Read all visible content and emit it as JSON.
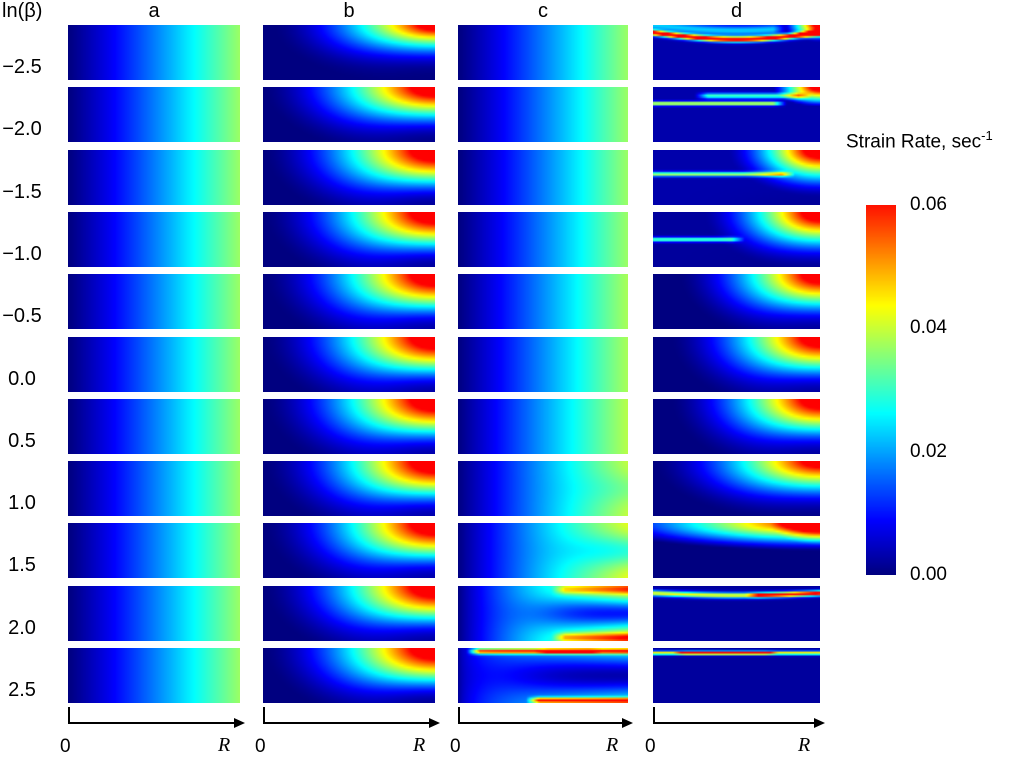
{
  "figure": {
    "y_axis_label": "ln(β)",
    "columns": [
      "a",
      "b",
      "c",
      "d"
    ],
    "rows": [
      "−2.5",
      "−2.0",
      "−1.5",
      "−1.0",
      "−0.5",
      "0.0",
      "0.5",
      "1.0",
      "1.5",
      "2.0",
      "2.5"
    ],
    "x_axis": {
      "origin": "0",
      "end": "R"
    },
    "colorbar": {
      "title": "Strain Rate, sec",
      "title_sup": "-1",
      "ticks": [
        "0.06",
        "0.04",
        "0.02",
        "0.00"
      ],
      "vmin": 0,
      "vmax": 0.06
    }
  },
  "chart_data": {
    "type": "heatmap",
    "colormap": "jet",
    "value_range": [
      0,
      0.06
    ],
    "x_range_labels": [
      "0",
      "R"
    ],
    "grid": {
      "columns": [
        "a",
        "b",
        "c",
        "d"
      ],
      "rows": [
        "−2.5",
        "−2.0",
        "−1.5",
        "−1.0",
        "−0.5",
        "0.0",
        "0.5",
        "1.0",
        "1.5",
        "2.0",
        "2.5"
      ]
    },
    "panels": [
      {
        "col": "a",
        "row": "−2.5",
        "components": [
          {
            "t": "grad",
            "v": 0.037,
            "p": 1.1
          }
        ]
      },
      {
        "col": "a",
        "row": "−2.0",
        "components": [
          {
            "t": "grad",
            "v": 0.037,
            "p": 1.1
          }
        ]
      },
      {
        "col": "a",
        "row": "−1.5",
        "components": [
          {
            "t": "grad",
            "v": 0.037,
            "p": 1.1
          }
        ]
      },
      {
        "col": "a",
        "row": "−1.0",
        "components": [
          {
            "t": "grad",
            "v": 0.037,
            "p": 1.1
          }
        ]
      },
      {
        "col": "a",
        "row": "−0.5",
        "components": [
          {
            "t": "grad",
            "v": 0.037,
            "p": 1.1
          }
        ]
      },
      {
        "col": "a",
        "row": "0.0",
        "components": [
          {
            "t": "grad",
            "v": 0.037,
            "p": 1.1
          }
        ]
      },
      {
        "col": "a",
        "row": "0.5",
        "components": [
          {
            "t": "grad",
            "v": 0.037,
            "p": 1.1
          }
        ]
      },
      {
        "col": "a",
        "row": "1.0",
        "components": [
          {
            "t": "grad",
            "v": 0.037,
            "p": 1.1
          }
        ]
      },
      {
        "col": "a",
        "row": "1.5",
        "components": [
          {
            "t": "grad",
            "v": 0.037,
            "p": 1.1
          }
        ]
      },
      {
        "col": "a",
        "row": "2.0",
        "components": [
          {
            "t": "grad",
            "v": 0.037,
            "p": 1.1
          }
        ]
      },
      {
        "col": "a",
        "row": "2.5",
        "components": [
          {
            "t": "grad",
            "v": 0.037,
            "p": 1.1
          }
        ]
      },
      {
        "col": "b",
        "row": "−2.5",
        "components": [
          {
            "t": "corner",
            "v": 0.08,
            "ax": 0.95,
            "ay": 1.15,
            "q": 1.8
          }
        ],
        "masks": [
          {
            "t": "deadBR",
            "s": 0.97,
            "wx": 0.75,
            "wy": 0.6
          }
        ]
      },
      {
        "col": "b",
        "row": "−2.0",
        "components": [
          {
            "t": "corner",
            "v": 0.08,
            "ax": 1.0,
            "ay": 1.35,
            "q": 1.7
          }
        ],
        "masks": [
          {
            "t": "deadBR",
            "s": 0.9,
            "wx": 0.55,
            "wy": 0.45
          }
        ]
      },
      {
        "col": "b",
        "row": "−1.5",
        "components": [
          {
            "t": "corner",
            "v": 0.08,
            "ax": 1.0,
            "ay": 1.5,
            "q": 1.7
          }
        ],
        "masks": [
          {
            "t": "deadBR",
            "s": 0.85,
            "wx": 0.5,
            "wy": 0.4
          }
        ]
      },
      {
        "col": "b",
        "row": "−1.0",
        "components": [
          {
            "t": "corner",
            "v": 0.08,
            "ax": 1.0,
            "ay": 1.55,
            "q": 1.7
          }
        ],
        "masks": [
          {
            "t": "deadBR",
            "s": 0.85,
            "wx": 0.5,
            "wy": 0.4
          }
        ]
      },
      {
        "col": "b",
        "row": "−0.5",
        "components": [
          {
            "t": "corner",
            "v": 0.08,
            "ax": 1.0,
            "ay": 1.6,
            "q": 1.7
          }
        ],
        "masks": [
          {
            "t": "deadBR",
            "s": 0.82,
            "wx": 0.5,
            "wy": 0.4
          }
        ]
      },
      {
        "col": "b",
        "row": "0.0",
        "components": [
          {
            "t": "corner",
            "v": 0.08,
            "ax": 1.0,
            "ay": 1.6,
            "q": 1.7
          }
        ],
        "masks": [
          {
            "t": "deadBR",
            "s": 0.82,
            "wx": 0.5,
            "wy": 0.4
          }
        ]
      },
      {
        "col": "b",
        "row": "0.5",
        "components": [
          {
            "t": "corner",
            "v": 0.08,
            "ax": 1.0,
            "ay": 1.6,
            "q": 1.7
          }
        ],
        "masks": [
          {
            "t": "deadBR",
            "s": 0.8,
            "wx": 0.5,
            "wy": 0.4
          }
        ]
      },
      {
        "col": "b",
        "row": "1.0",
        "components": [
          {
            "t": "corner",
            "v": 0.08,
            "ax": 1.0,
            "ay": 1.6,
            "q": 1.7
          }
        ],
        "masks": [
          {
            "t": "deadBR",
            "s": 0.8,
            "wx": 0.5,
            "wy": 0.4
          }
        ]
      },
      {
        "col": "b",
        "row": "1.5",
        "components": [
          {
            "t": "corner",
            "v": 0.08,
            "ax": 1.0,
            "ay": 1.6,
            "q": 1.7
          }
        ],
        "masks": [
          {
            "t": "deadBR",
            "s": 0.8,
            "wx": 0.5,
            "wy": 0.4
          }
        ]
      },
      {
        "col": "b",
        "row": "2.0",
        "components": [
          {
            "t": "corner",
            "v": 0.08,
            "ax": 1.0,
            "ay": 1.55,
            "q": 1.7
          }
        ],
        "masks": [
          {
            "t": "deadBR",
            "s": 0.82,
            "wx": 0.5,
            "wy": 0.4
          }
        ]
      },
      {
        "col": "b",
        "row": "2.5",
        "components": [
          {
            "t": "corner",
            "v": 0.08,
            "ax": 1.0,
            "ay": 1.5,
            "q": 1.7
          }
        ],
        "masks": [
          {
            "t": "deadBR",
            "s": 0.85,
            "wx": 0.5,
            "wy": 0.38
          }
        ]
      },
      {
        "col": "c",
        "row": "−2.5",
        "components": [
          {
            "t": "grad",
            "v": 0.037,
            "p": 1.1
          }
        ]
      },
      {
        "col": "c",
        "row": "−2.0",
        "components": [
          {
            "t": "grad",
            "v": 0.037,
            "p": 1.1
          }
        ]
      },
      {
        "col": "c",
        "row": "−1.5",
        "components": [
          {
            "t": "grad",
            "v": 0.037,
            "p": 1.1
          }
        ]
      },
      {
        "col": "c",
        "row": "−1.0",
        "components": [
          {
            "t": "grad",
            "v": 0.037,
            "p": 1.08
          }
        ]
      },
      {
        "col": "c",
        "row": "−0.5",
        "components": [
          {
            "t": "grad",
            "v": 0.038,
            "p": 1.05
          }
        ]
      },
      {
        "col": "c",
        "row": "0.0",
        "components": [
          {
            "t": "grad",
            "v": 0.038,
            "p": 1.05
          }
        ]
      },
      {
        "col": "c",
        "row": "0.5",
        "components": [
          {
            "t": "grad",
            "v": 0.039,
            "p": 1.0
          }
        ]
      },
      {
        "col": "c",
        "row": "1.0",
        "components": [
          {
            "t": "grad",
            "v": 0.04,
            "p": 1.0
          }
        ],
        "masks": [
          {
            "t": "centerDead",
            "s": 0.15,
            "hy": 0.3,
            "x0": 0.8,
            "w": 0.12
          }
        ]
      },
      {
        "col": "c",
        "row": "1.5",
        "components": [
          {
            "t": "grad",
            "v": 0.043,
            "p": 0.95
          }
        ],
        "masks": [
          {
            "t": "centerDead",
            "s": 0.35,
            "hy": 0.3,
            "x0": 0.7,
            "w": 0.12
          }
        ]
      },
      {
        "col": "c",
        "row": "2.0",
        "components": [
          {
            "t": "grad",
            "v": 0.048,
            "p": 0.85
          },
          {
            "t": "band",
            "v": 0.018,
            "y0": 0.07,
            "h": 0.08,
            "x0": 0.55,
            "x1": 1.2
          },
          {
            "t": "band",
            "v": 0.022,
            "y0": 0.93,
            "h": 0.08,
            "x0": 0.55,
            "x1": 1.2
          }
        ],
        "masks": [
          {
            "t": "centerDead",
            "s": 0.8,
            "hy": 0.3,
            "x0": 0.5,
            "w": 0.12
          }
        ]
      },
      {
        "col": "c",
        "row": "2.5",
        "components": [
          {
            "t": "grad",
            "v": 0.03,
            "p": 0.5
          },
          {
            "t": "band",
            "v": 0.05,
            "y0": 0.06,
            "h": 0.05,
            "x0": 0.05,
            "x1": 1.2
          },
          {
            "t": "band",
            "v": 0.055,
            "y0": 0.95,
            "h": 0.05,
            "x0": 0.4,
            "x1": 1.2
          },
          {
            "t": "band",
            "v": 0.02,
            "y0": 0.06,
            "h": 0.04,
            "x0": 0.45,
            "x1": 0.85
          }
        ],
        "masks": [
          {
            "t": "centerDead",
            "s": 0.9,
            "hy": 0.35,
            "x0": 0.3,
            "w": 0.15
          }
        ]
      },
      {
        "col": "d",
        "row": "−2.5",
        "components": [
          {
            "t": "fill",
            "v": 0.003
          },
          {
            "t": "band",
            "v": 0.07,
            "y0": 0.14,
            "amp": 0.12,
            "h": 0.05,
            "x0": -0.2,
            "x1": 1.25
          },
          {
            "t": "corner",
            "v": 0.075,
            "ax": 0.22,
            "ay": 0.3,
            "q": 1.2
          },
          {
            "t": "band",
            "v": 0.02,
            "y0": 0.0,
            "amp": 0.1,
            "h": 0.09,
            "x0": -0.2,
            "x1": 0.8
          }
        ]
      },
      {
        "col": "d",
        "row": "−2.0",
        "components": [
          {
            "t": "fill",
            "v": 0.003
          },
          {
            "t": "band",
            "v": 0.042,
            "y0": 0.3,
            "h": 0.035,
            "x0": -0.2,
            "x1": 0.8
          },
          {
            "t": "band",
            "v": 0.028,
            "y0": 0.16,
            "h": 0.05,
            "x0": 0.25,
            "x1": 0.95
          },
          {
            "t": "corner",
            "v": 0.075,
            "ax": 0.28,
            "ay": 0.35,
            "q": 1.1
          }
        ]
      },
      {
        "col": "d",
        "row": "−1.5",
        "components": [
          {
            "t": "fill",
            "v": 0.003
          },
          {
            "t": "corner",
            "v": 0.078,
            "ax": 0.55,
            "ay": 0.85,
            "q": 1.5
          },
          {
            "t": "band",
            "v": 0.036,
            "y0": 0.44,
            "h": 0.04,
            "x0": -0.2,
            "x1": 0.85
          }
        ],
        "masks": [
          {
            "t": "deadBR",
            "s": 0.4,
            "wx": 0.45,
            "wy": 0.3
          }
        ]
      },
      {
        "col": "d",
        "row": "−1.0",
        "components": [
          {
            "t": "fill",
            "v": 0.002
          },
          {
            "t": "corner",
            "v": 0.078,
            "ax": 0.7,
            "ay": 1.1,
            "q": 1.6
          },
          {
            "t": "band",
            "v": 0.032,
            "y0": 0.5,
            "h": 0.04,
            "x0": -0.2,
            "x1": 0.55
          }
        ],
        "masks": [
          {
            "t": "deadBR",
            "s": 0.6,
            "wx": 0.5,
            "wy": 0.38
          }
        ]
      },
      {
        "col": "d",
        "row": "−0.5",
        "components": [
          {
            "t": "corner",
            "v": 0.078,
            "ax": 0.85,
            "ay": 1.35,
            "q": 1.7
          }
        ],
        "masks": [
          {
            "t": "deadBR",
            "s": 0.75,
            "wx": 0.5,
            "wy": 0.4
          }
        ]
      },
      {
        "col": "d",
        "row": "0.0",
        "components": [
          {
            "t": "corner",
            "v": 0.078,
            "ax": 0.9,
            "ay": 1.45,
            "q": 1.7
          }
        ],
        "masks": [
          {
            "t": "deadBR",
            "s": 0.78,
            "wx": 0.5,
            "wy": 0.4
          }
        ]
      },
      {
        "col": "d",
        "row": "0.5",
        "components": [
          {
            "t": "corner",
            "v": 0.078,
            "ax": 0.9,
            "ay": 1.45,
            "q": 1.7
          }
        ],
        "masks": [
          {
            "t": "deadBR",
            "s": 0.78,
            "wx": 0.52,
            "wy": 0.42
          }
        ]
      },
      {
        "col": "d",
        "row": "1.0",
        "components": [
          {
            "t": "corner",
            "v": 0.075,
            "ax": 1.0,
            "ay": 1.15,
            "q": 1.7
          }
        ],
        "masks": [
          {
            "t": "deadBR",
            "s": 0.72,
            "wx": 0.55,
            "wy": 0.45
          }
        ]
      },
      {
        "col": "d",
        "row": "1.5",
        "components": [
          {
            "t": "corner",
            "v": 0.07,
            "ax": 1.35,
            "ay": 0.5,
            "q": 1.2
          },
          {
            "t": "corner",
            "v": 0.035,
            "ax": 0.3,
            "ay": 0.4,
            "q": 1.1
          }
        ],
        "masks": [
          {
            "t": "deadBR",
            "s": 0.35,
            "wx": 0.5,
            "wy": 0.35
          }
        ]
      },
      {
        "col": "d",
        "row": "2.0",
        "components": [
          {
            "t": "fill",
            "v": 0.002
          },
          {
            "t": "band",
            "v": 0.042,
            "y0": 0.13,
            "amp": 0.04,
            "h": 0.05,
            "x0": -0.2,
            "x1": 1.25
          },
          {
            "t": "band",
            "v": 0.026,
            "y0": 0.13,
            "amp": 0.04,
            "h": 0.04,
            "x0": 0.55,
            "x1": 1.1
          }
        ]
      },
      {
        "col": "d",
        "row": "2.5",
        "components": [
          {
            "t": "fill",
            "v": 0.002
          },
          {
            "t": "band",
            "v": 0.044,
            "y0": 0.09,
            "h": 0.035,
            "x0": -0.2,
            "x1": 1.25
          },
          {
            "t": "band",
            "v": 0.03,
            "y0": 0.09,
            "h": 0.028,
            "x0": 0.12,
            "x1": 0.75
          }
        ]
      }
    ]
  }
}
